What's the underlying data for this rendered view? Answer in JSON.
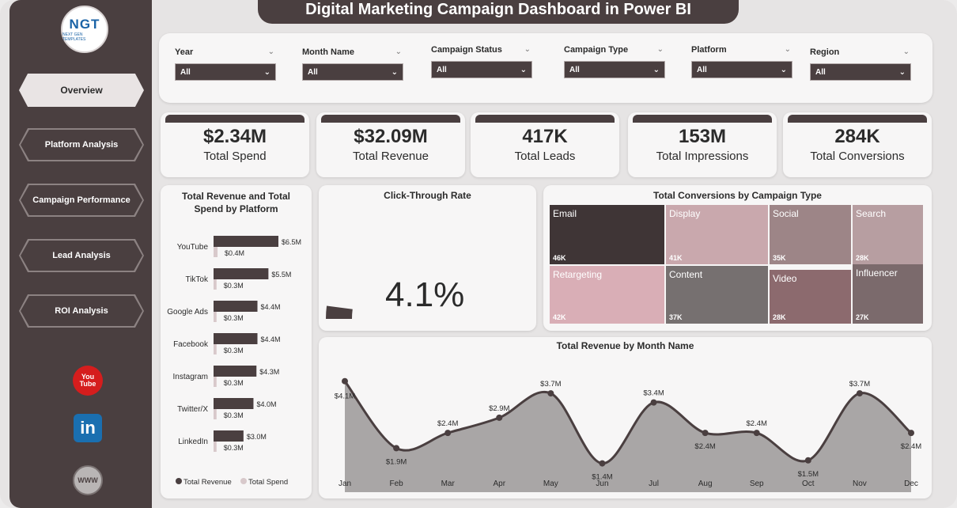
{
  "title": "Digital Marketing Campaign Dashboard in Power BI",
  "logo": {
    "text": "NGT",
    "subtext": "NEXT GEN TEMPLATES"
  },
  "nav": [
    {
      "label": "Overview"
    },
    {
      "label": "Platform Analysis"
    },
    {
      "label": "Campaign Performance"
    },
    {
      "label": "Lead Analysis"
    },
    {
      "label": "ROI Analysis"
    }
  ],
  "social": {
    "youtube": "You Tube",
    "linkedin": "in",
    "web": "WWW"
  },
  "filters": [
    {
      "label": "Year",
      "value": "All"
    },
    {
      "label": "Month Name",
      "value": "All"
    },
    {
      "label": "Campaign Status",
      "value": "All"
    },
    {
      "label": "Campaign Type",
      "value": "All"
    },
    {
      "label": "Platform",
      "value": "All"
    },
    {
      "label": "Region",
      "value": "All"
    }
  ],
  "kpis": [
    {
      "value": "$2.34M",
      "label": "Total Spend"
    },
    {
      "value": "$32.09M",
      "label": "Total Revenue"
    },
    {
      "value": "417K",
      "label": "Total Leads"
    },
    {
      "value": "153M",
      "label": "Total Impressions"
    },
    {
      "value": "284K",
      "label": "Total Conversions"
    }
  ],
  "ctr": {
    "title": "Click-Through Rate",
    "value": "4.1%",
    "fraction": 0.041
  },
  "chart_data": [
    {
      "type": "bar",
      "title": "Total Revenue and Total Spend by Platform",
      "categories": [
        "YouTube",
        "TikTok",
        "Google Ads",
        "Facebook",
        "Instagram",
        "Twitter/X",
        "LinkedIn"
      ],
      "series": [
        {
          "name": "Total Revenue",
          "values": [
            6.5,
            5.5,
            4.4,
            4.4,
            4.3,
            4.0,
            3.0
          ],
          "labels": [
            "$6.5M",
            "$5.5M",
            "$4.4M",
            "$4.4M",
            "$4.3M",
            "$4.0M",
            "$3.0M"
          ],
          "color": "#4a3f40"
        },
        {
          "name": "Total Spend",
          "values": [
            0.4,
            0.3,
            0.3,
            0.3,
            0.3,
            0.3,
            0.3
          ],
          "labels": [
            "$0.4M",
            "$0.3M",
            "$0.3M",
            "$0.3M",
            "$0.3M",
            "$0.3M",
            "$0.3M"
          ],
          "color": "#d8c9cb"
        }
      ],
      "legend": "bottom"
    },
    {
      "type": "treemap",
      "title": "Total Conversions by Campaign Type",
      "categories": [
        "Email",
        "Display",
        "Social",
        "Search",
        "Retargeting",
        "Content",
        "Video",
        "Influencer"
      ],
      "values": [
        46,
        41,
        35,
        28,
        42,
        37,
        28,
        27
      ],
      "labels": [
        "46K",
        "41K",
        "35K",
        "28K",
        "42K",
        "37K",
        "28K",
        "27K"
      ],
      "colors": [
        "#3f3536",
        "#c9a8ad",
        "#9d8587",
        "#b79ea1",
        "#d9aeb6",
        "#767070",
        "#8c6a6e",
        "#7b6a6c"
      ]
    },
    {
      "type": "area",
      "title": "Total Revenue by Month Name",
      "categories": [
        "Jan",
        "Feb",
        "Mar",
        "Apr",
        "May",
        "Jun",
        "Jul",
        "Aug",
        "Sep",
        "Oct",
        "Nov",
        "Dec"
      ],
      "values": [
        4.1,
        1.9,
        2.4,
        2.9,
        3.7,
        1.4,
        3.4,
        2.4,
        2.4,
        1.5,
        3.7,
        2.4
      ],
      "labels": [
        "$4.1M",
        "$1.9M",
        "$2.4M",
        "$2.9M",
        "$3.7M",
        "$1.4M",
        "$3.4M",
        "$2.4M",
        "$2.4M",
        "$1.5M",
        "$3.7M",
        "$2.4M"
      ],
      "color": "#4a3f40",
      "fill": "#a9a6a6"
    }
  ]
}
